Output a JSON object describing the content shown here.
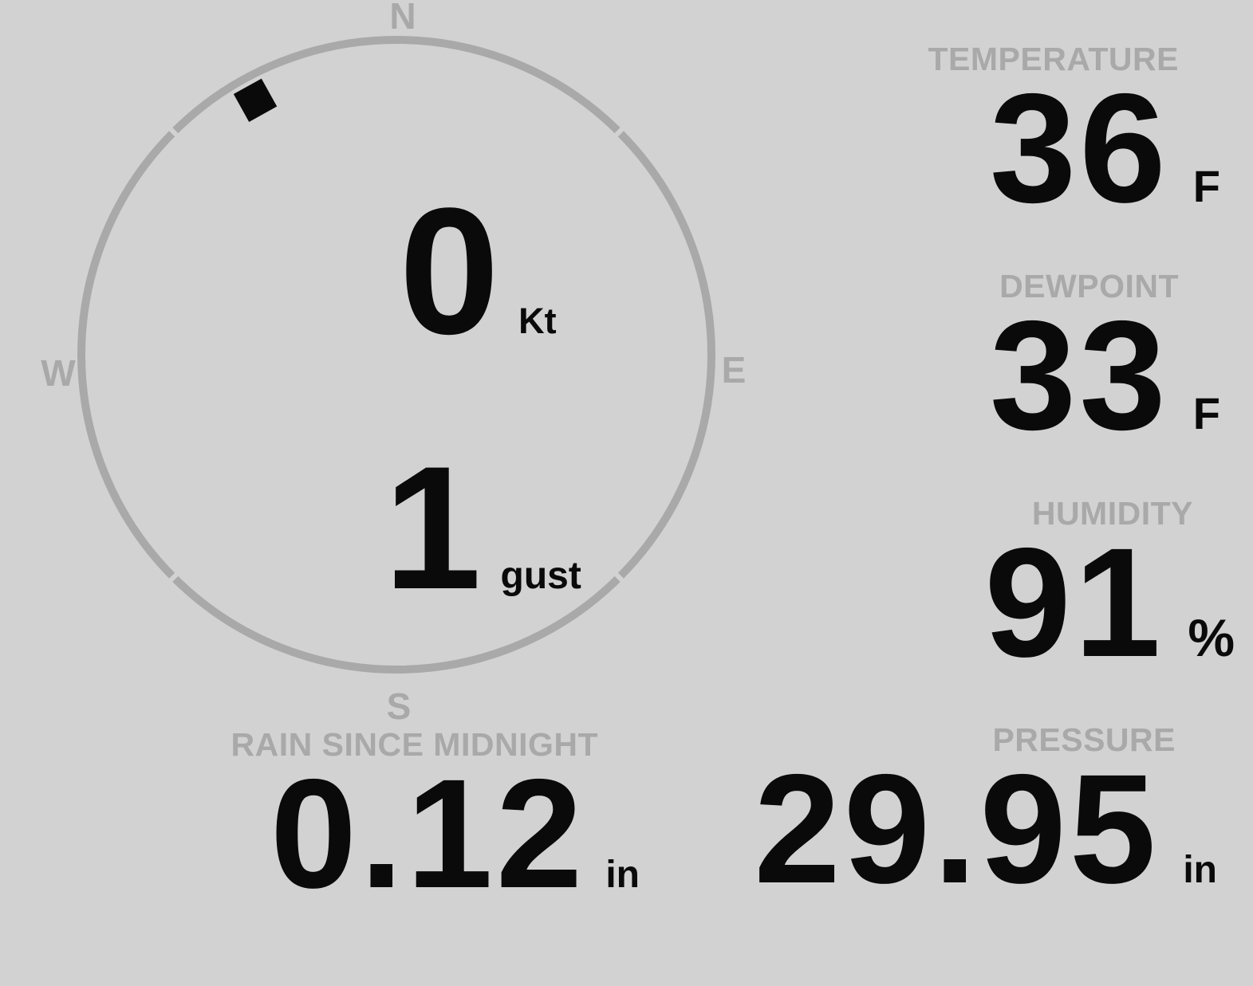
{
  "colors": {
    "background": "#d2d2d2",
    "muted": "#a9a9a9",
    "ink": "#0a0a0a"
  },
  "wind": {
    "compass": {
      "north": "N",
      "east": "E",
      "south": "S",
      "west": "W"
    },
    "speed": {
      "value": "0",
      "unit": "Kt"
    },
    "gust": {
      "value": "1",
      "unit": "gust"
    },
    "direction_deg": 331
  },
  "metrics": {
    "temperature": {
      "label": "TEMPERATURE",
      "value": "36",
      "unit": "F"
    },
    "dewpoint": {
      "label": "DEWPOINT",
      "value": "33",
      "unit": "F"
    },
    "humidity": {
      "label": "HUMIDITY",
      "value": "91",
      "unit": "%"
    },
    "rain": {
      "label": "RAIN SINCE MIDNIGHT",
      "value": "0.12",
      "unit": "in"
    },
    "pressure": {
      "label": "PRESSURE",
      "value": "29.95",
      "unit": "in"
    }
  }
}
